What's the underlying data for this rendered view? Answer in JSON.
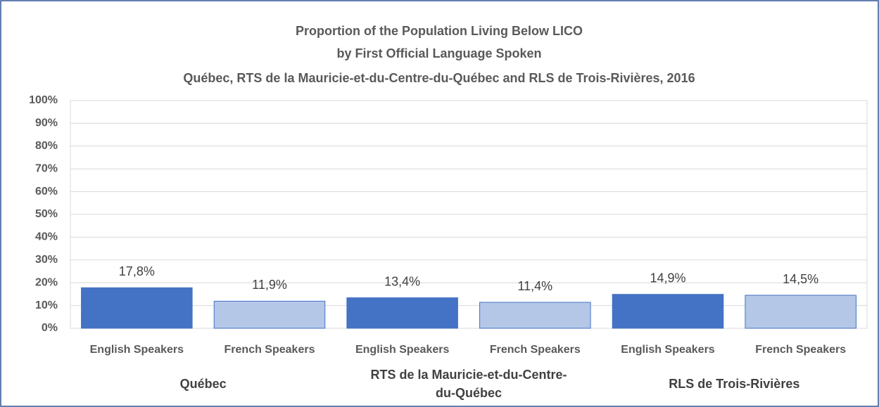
{
  "chart_data": {
    "type": "bar",
    "title": [
      "Proportion of the Population Living Below LICO",
      "by First Official Language Spoken",
      "Québec, RTS de la Mauricie-et-du-Centre-du-Québec  and RLS de Trois-Rivières, 2016"
    ],
    "categories": [
      "Québec",
      "RTS de la Mauricie-et-du-Centre-du-Québec",
      "RLS de Trois-Rivières"
    ],
    "series": [
      {
        "name": "English Speakers",
        "color": "#4472c4",
        "values": [
          17.8,
          13.4,
          14.9
        ],
        "value_labels": [
          "17,8%",
          "13,4%",
          "14,9%"
        ]
      },
      {
        "name": "French Speakers",
        "color": "#b4c7e7",
        "values": [
          11.9,
          11.4,
          14.5
        ],
        "value_labels": [
          "11,9%",
          "11,4%",
          "14,5%"
        ]
      }
    ],
    "ylim": [
      0,
      100
    ],
    "yticks": [
      {
        "value": 0,
        "label": "0%"
      },
      {
        "value": 10,
        "label": "10%"
      },
      {
        "value": 20,
        "label": "20%"
      },
      {
        "value": 30,
        "label": "30%"
      },
      {
        "value": 40,
        "label": "40%"
      },
      {
        "value": 50,
        "label": "50%"
      },
      {
        "value": 60,
        "label": "60%"
      },
      {
        "value": 70,
        "label": "70%"
      },
      {
        "value": 80,
        "label": "80%"
      },
      {
        "value": 90,
        "label": "90%"
      },
      {
        "value": 100,
        "label": "100%"
      }
    ],
    "grid": true
  }
}
